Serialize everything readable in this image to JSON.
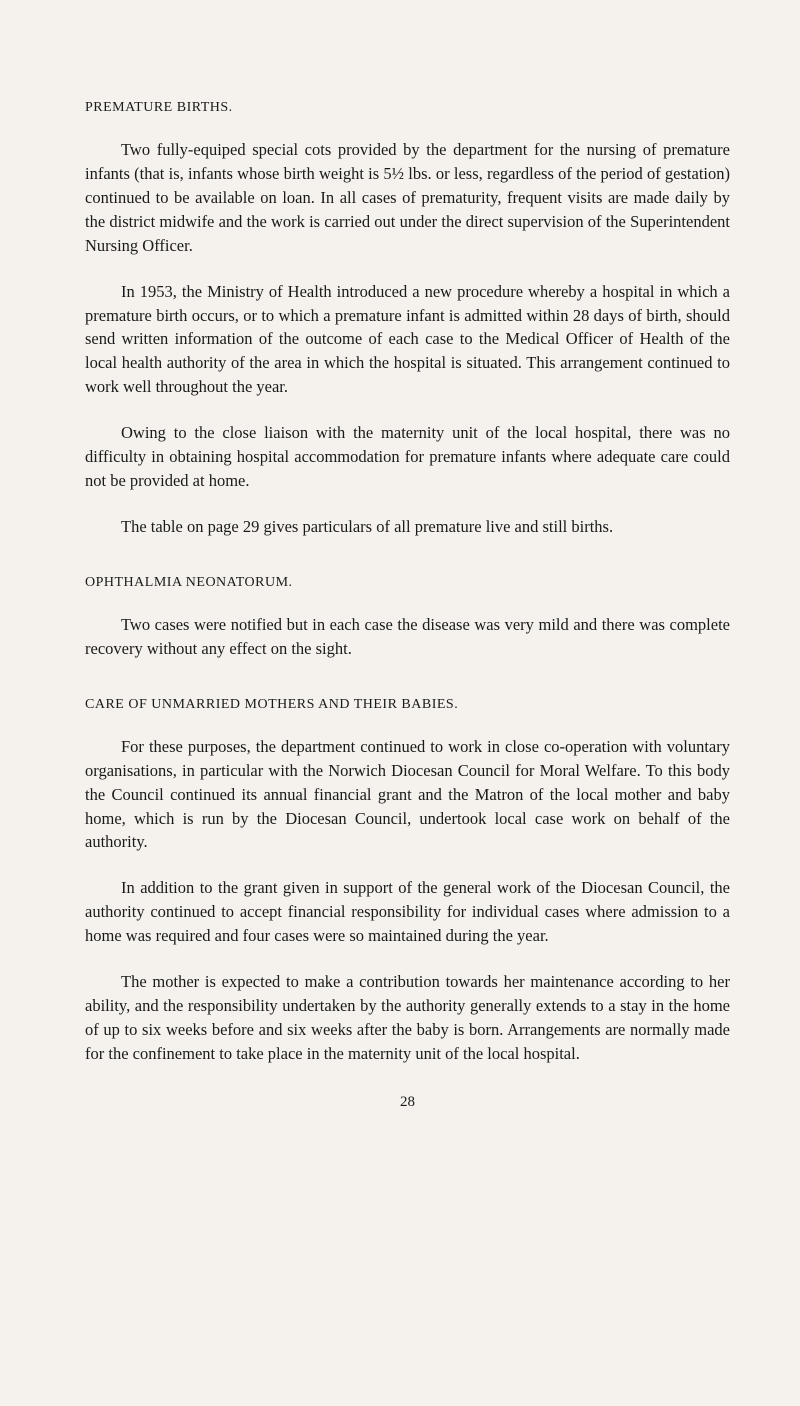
{
  "sections": {
    "premature_births": {
      "heading": "PREMATURE BIRTHS.",
      "paragraphs": {
        "p1": "Two fully-equiped special cots provided by the department for the nursing of premature infants (that is, infants whose birth weight is 5½ lbs. or less, regardless of the period of gestation) continued to be available on loan. In all cases of prematurity, frequent visits are made daily by the district midwife and the work is carried out under the direct supervision of the Superintendent Nursing Officer.",
        "p2": "In 1953, the Ministry of Health introduced a new procedure where­by a hospital in which a premature birth occurs, or to which a prema­ture infant is admitted within 28 days of birth, should send written information of the outcome of each case to the Medical Officer of Health of the local health authority of the area in which the hospital is situated. This arrangement continued to work well throughout the year.",
        "p3": "Owing to the close liaison with the maternity unit of the local hospital, there was no difficulty in obtaining hospital accommodation for premature infants where adequate care could not be provided at home.",
        "p4": "The table on page 29 gives particulars of all premature live and still births."
      }
    },
    "ophthalmia": {
      "heading": "OPHTHALMIA NEONATORUM.",
      "paragraphs": {
        "p1": "Two cases were notified but in each case the disease was very mild and there was complete recovery without any effect on the sight."
      }
    },
    "care_unmarried": {
      "heading": "CARE OF UNMARRIED MOTHERS AND THEIR BABIES.",
      "paragraphs": {
        "p1": "For these purposes, the department continued to work in close co-operation with voluntary organisations, in particular with the Norwich Diocesan Council for Moral Welfare. To this body the Council continued its annual financial grant and the Matron of the local mother and baby home, which is run by the Diocesan Council, undertook local case work on behalf of the authority.",
        "p2": "In addition to the grant given in support of the general work of the Diocesan Council, the authority continued to accept financial re­sponsibility for individual cases where admission to a home was required and four cases were so maintained during the year.",
        "p3": "The mother is expected to make a contribution towards her main­tenance according to her ability, and the responsibility undertaken by the authority generally extends to a stay in the home of up to six weeks before and six weeks after the baby is born. Arrangements are normally made for the confinement to take place in the maternity unit of the local hospital."
      }
    }
  },
  "page_number": "28"
}
